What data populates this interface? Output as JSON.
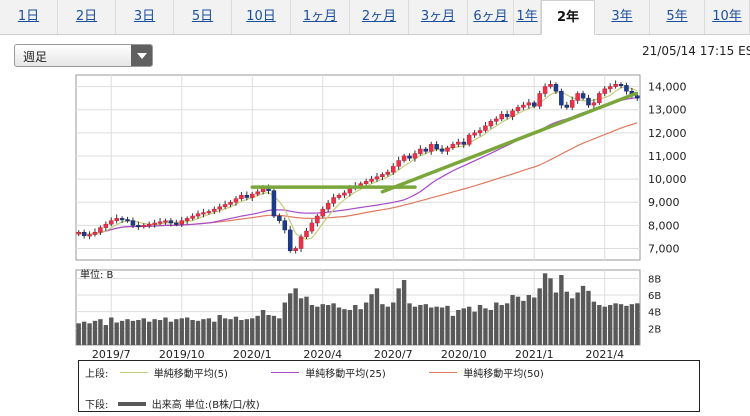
{
  "tabs": [
    "1日",
    "2日",
    "3日",
    "5日",
    "10日",
    "1ヶ月",
    "2ヶ月",
    "3ヶ月",
    "6ヶ月",
    "1年",
    "2年",
    "3年",
    "5年",
    "10年"
  ],
  "active_tab": "2年",
  "select": {
    "value": "週足"
  },
  "timestamp": "21/05/14 17:15 ES",
  "volume_unit_label": "単位: B",
  "legend": {
    "upper_label": "上段:",
    "lower_label": "下段:",
    "items": [
      {
        "label": "単純移動平均(5)",
        "color": "#c7cc7a"
      },
      {
        "label": "単純移動平均(25)",
        "color": "#a64ac9"
      },
      {
        "label": "単純移動平均(50)",
        "color": "#e07a5f"
      }
    ],
    "volume_label": "出来高 単位:(B株/口/枚)"
  },
  "chart_data": {
    "type": "candlestick",
    "price_axis": {
      "ylim": [
        6500,
        14500
      ],
      "ticks": [
        7000,
        8000,
        9000,
        10000,
        11000,
        12000,
        13000,
        14000
      ],
      "tick_labels": [
        "7,000",
        "8,000",
        "9,000",
        "10,000",
        "11,000",
        "12,000",
        "13,000",
        "14,000"
      ]
    },
    "volume_axis": {
      "ylim": [
        0,
        9
      ],
      "ticks": [
        2,
        4,
        6,
        8
      ],
      "tick_labels": [
        "2B",
        "4B",
        "6B",
        "8B"
      ]
    },
    "x_tick_labels": [
      "2019/7",
      "2019/10",
      "2020/1",
      "2020/4",
      "2020/7",
      "2020/10",
      "2021/1",
      "2021/4"
    ],
    "x_tick_week_index": [
      6,
      19,
      32,
      45,
      58,
      71,
      84,
      97
    ],
    "weeks": 104,
    "close": [
      7700,
      7550,
      7600,
      7700,
      7900,
      8050,
      8200,
      8300,
      8250,
      8200,
      8000,
      7950,
      8000,
      8050,
      8100,
      8150,
      8200,
      8100,
      8050,
      8200,
      8300,
      8400,
      8500,
      8550,
      8600,
      8700,
      8800,
      8900,
      9000,
      9150,
      9300,
      9200,
      9350,
      9450,
      9600,
      9500,
      8400,
      8200,
      7800,
      6900,
      7000,
      7500,
      7750,
      8100,
      8400,
      8700,
      8950,
      9200,
      9300,
      9400,
      9600,
      9700,
      9800,
      9900,
      10000,
      10100,
      10200,
      10300,
      10550,
      10800,
      11000,
      10900,
      11100,
      11300,
      11200,
      11500,
      11300,
      11200,
      11350,
      11500,
      11600,
      11500,
      11900,
      12000,
      12100,
      12300,
      12500,
      12600,
      12800,
      12700,
      12950,
      13100,
      13200,
      13300,
      13150,
      13700,
      14000,
      14100,
      13800,
      13200,
      13100,
      13400,
      13700,
      13500,
      13200,
      13300,
      13700,
      13900,
      14000,
      14100,
      14050,
      13800,
      13600,
      13500
    ],
    "volume": [
      2.6,
      2.8,
      2.6,
      2.9,
      3.1,
      2.4,
      3.3,
      2.7,
      2.9,
      3.1,
      2.9,
      3.0,
      3.2,
      2.8,
      3.1,
      3.0,
      3.3,
      2.8,
      3.1,
      3.2,
      3.3,
      3.0,
      2.9,
      3.1,
      3.2,
      2.8,
      3.6,
      3.2,
      3.1,
      3.4,
      3.0,
      3.1,
      3.2,
      3.5,
      4.2,
      3.6,
      3.5,
      3.2,
      5.1,
      6.2,
      6.8,
      5.6,
      5.8,
      4.8,
      4.6,
      4.9,
      4.8,
      5.0,
      4.5,
      4.3,
      4.2,
      4.8,
      4.3,
      5.1,
      6.1,
      6.8,
      4.9,
      4.6,
      5.1,
      6.8,
      7.8,
      5.0,
      4.6,
      4.8,
      4.9,
      4.5,
      4.6,
      4.5,
      4.7,
      3.5,
      4.2,
      4.4,
      4.6,
      4.0,
      4.8,
      4.4,
      4.2,
      5.1,
      4.8,
      5.0,
      6.0,
      5.8,
      5.3,
      6.0,
      5.7,
      6.8,
      8.6,
      8.0,
      6.3,
      8.4,
      6.4,
      5.6,
      6.3,
      7.1,
      6.5,
      5.2,
      4.8,
      4.6,
      4.8,
      5.0,
      4.9,
      4.7,
      4.9,
      5.0
    ],
    "trendlines": [
      {
        "color": "#7aa63c",
        "points": [
          [
            32,
            9650
          ],
          [
            62,
            9650
          ]
        ]
      },
      {
        "color": "#7aa63c",
        "points": [
          [
            56,
            9450
          ],
          [
            104,
            13700
          ]
        ]
      }
    ]
  }
}
